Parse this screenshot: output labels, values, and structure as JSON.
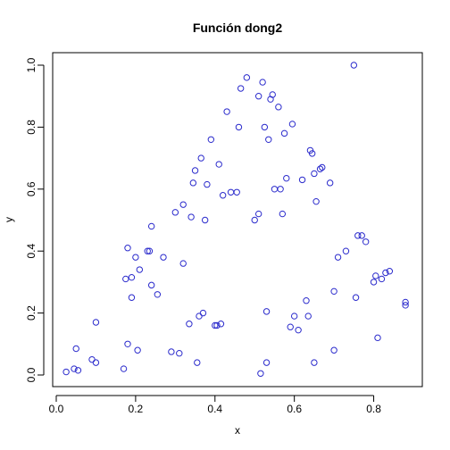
{
  "chart_data": {
    "type": "scatter",
    "title": "Función dong2",
    "xlabel": "x",
    "ylabel": "y",
    "xlim": [
      0,
      0.9
    ],
    "ylim": [
      0,
      1.0
    ],
    "x_ticks": [
      "0.0",
      "0.2",
      "0.4",
      "0.6",
      "0.8"
    ],
    "x_tick_values": [
      0,
      0.2,
      0.4,
      0.6,
      0.8
    ],
    "y_ticks": [
      "0.0",
      "0.2",
      "0.4",
      "0.6",
      "0.8",
      "1.0"
    ],
    "y_tick_values": [
      0,
      0.2,
      0.4,
      0.6,
      0.8,
      1.0
    ],
    "grid": false,
    "marker": "open-circle",
    "point_color": "#2b2bcc",
    "series": [
      {
        "x": [
          0.025,
          0.045,
          0.05,
          0.09,
          0.1,
          0.1,
          0.17,
          0.175,
          0.18,
          0.19,
          0.2,
          0.21,
          0.23,
          0.24,
          0.255,
          0.27,
          0.29,
          0.3,
          0.31,
          0.32,
          0.335,
          0.34,
          0.345,
          0.35,
          0.355,
          0.36,
          0.365,
          0.37,
          0.375,
          0.39,
          0.4,
          0.405,
          0.41,
          0.415,
          0.42,
          0.43,
          0.44,
          0.455,
          0.46,
          0.465,
          0.48,
          0.5,
          0.51,
          0.51,
          0.515,
          0.52,
          0.525,
          0.53,
          0.535,
          0.54,
          0.545,
          0.55,
          0.56,
          0.565,
          0.57,
          0.575,
          0.59,
          0.595,
          0.6,
          0.61,
          0.62,
          0.63,
          0.635,
          0.64,
          0.645,
          0.65,
          0.655,
          0.665,
          0.67,
          0.69,
          0.7,
          0.7,
          0.71,
          0.73,
          0.75,
          0.755,
          0.76,
          0.77,
          0.78,
          0.8,
          0.805,
          0.81,
          0.82,
          0.83,
          0.84,
          0.88,
          0.88,
          0.24,
          0.235,
          0.38,
          0.32,
          0.58,
          0.65,
          0.205,
          0.18,
          0.53,
          0.055,
          0.19
        ],
        "y": [
          0.01,
          0.02,
          0.085,
          0.05,
          0.04,
          0.17,
          0.02,
          0.31,
          0.1,
          0.25,
          0.38,
          0.34,
          0.4,
          0.48,
          0.26,
          0.38,
          0.075,
          0.525,
          0.07,
          0.36,
          0.165,
          0.51,
          0.62,
          0.66,
          0.04,
          0.19,
          0.7,
          0.2,
          0.5,
          0.76,
          0.16,
          0.16,
          0.68,
          0.165,
          0.58,
          0.85,
          0.59,
          0.59,
          0.8,
          0.925,
          0.96,
          0.5,
          0.52,
          0.9,
          0.005,
          0.945,
          0.8,
          0.04,
          0.76,
          0.89,
          0.905,
          0.6,
          0.865,
          0.6,
          0.52,
          0.78,
          0.155,
          0.81,
          0.19,
          0.145,
          0.63,
          0.24,
          0.19,
          0.725,
          0.715,
          0.65,
          0.56,
          0.665,
          0.67,
          0.62,
          0.08,
          0.27,
          0.38,
          0.4,
          1.0,
          0.25,
          0.45,
          0.45,
          0.43,
          0.3,
          0.32,
          0.12,
          0.31,
          0.33,
          0.335,
          0.225,
          0.235,
          0.29,
          0.4,
          0.615,
          0.55,
          0.635,
          0.04,
          0.08,
          0.41,
          0.205,
          0.015,
          0.315
        ]
      }
    ]
  }
}
